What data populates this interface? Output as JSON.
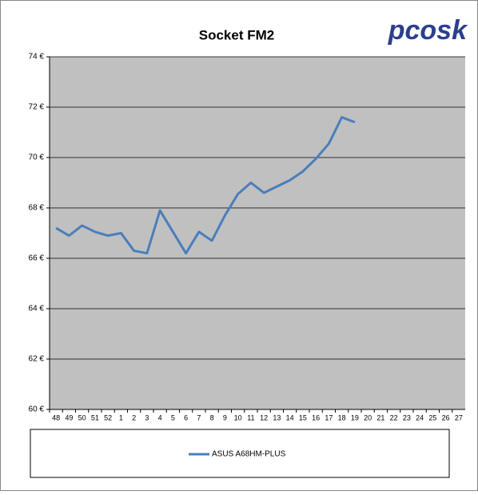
{
  "chart_data": {
    "type": "line",
    "title": "Socket FM2",
    "logo": "pcosk",
    "categories": [
      "48",
      "49",
      "50",
      "51",
      "52",
      "1",
      "2",
      "3",
      "4",
      "5",
      "6",
      "7",
      "8",
      "9",
      "10",
      "11",
      "12",
      "13",
      "14",
      "15",
      "16",
      "17",
      "18",
      "19",
      "20",
      "21",
      "22",
      "23",
      "24",
      "25",
      "26",
      "27"
    ],
    "series": [
      {
        "name": "ASUS A68HM-PLUS",
        "color": "#4a7ebb",
        "values": [
          67.2,
          66.9,
          67.3,
          67.05,
          66.9,
          67.0,
          66.3,
          66.2,
          67.9,
          67.05,
          66.2,
          67.05,
          66.7,
          67.7,
          68.55,
          69.0,
          68.6,
          68.85,
          69.1,
          69.45,
          69.95,
          70.55,
          71.6,
          71.4,
          null,
          null,
          null,
          null,
          null,
          null,
          null,
          null
        ]
      }
    ],
    "ylim": [
      60,
      74
    ],
    "yticks": [
      {
        "value": 60,
        "label": "60 €"
      },
      {
        "value": 62,
        "label": "62 €"
      },
      {
        "value": 64,
        "label": "64 €"
      },
      {
        "value": 66,
        "label": "66 €"
      },
      {
        "value": 68,
        "label": "68 €"
      },
      {
        "value": 70,
        "label": "70 €"
      },
      {
        "value": 72,
        "label": "72 €"
      },
      {
        "value": 74,
        "label": "74 €"
      }
    ],
    "grid": true,
    "legend": "bottom"
  }
}
